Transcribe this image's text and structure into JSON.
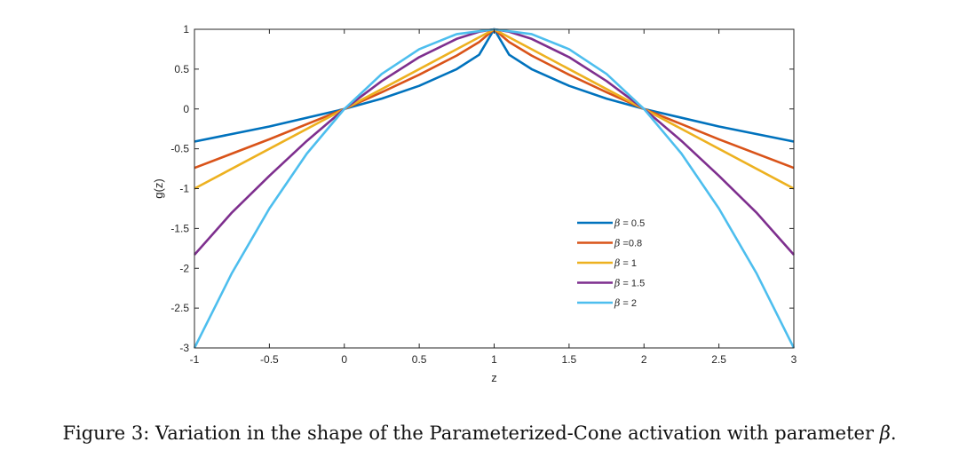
{
  "chart_data": {
    "type": "line",
    "xlabel": "z",
    "ylabel": "g(z)",
    "xlim": [
      -1,
      3
    ],
    "ylim": [
      -3,
      1
    ],
    "xticks": [
      -1,
      -0.5,
      0,
      0.5,
      1,
      1.5,
      2,
      2.5,
      3
    ],
    "xtick_labels": [
      "-1",
      "-0.5",
      "0",
      "0.5",
      "1",
      "1.5",
      "2",
      "2.5",
      "3"
    ],
    "yticks": [
      -3,
      -2.5,
      -2,
      -1.5,
      -1,
      -0.5,
      0,
      0.5,
      1
    ],
    "ytick_labels": [
      "-3",
      "-2.5",
      "-2",
      "-1.5",
      "-1",
      "-0.5",
      "0",
      "0.5",
      "1"
    ],
    "grid": false,
    "legend_position": "lower-right inside",
    "series": [
      {
        "name": "β = 0.5",
        "color": "#0072BD",
        "x": [
          -1,
          -0.5,
          0,
          0.25,
          0.5,
          0.75,
          0.9,
          1,
          1.1,
          1.25,
          1.5,
          1.75,
          2,
          2.5,
          3
        ],
        "y": [
          -0.41,
          -0.22,
          0,
          0.13,
          0.29,
          0.5,
          0.68,
          1,
          0.68,
          0.5,
          0.29,
          0.13,
          0,
          -0.22,
          -0.41
        ]
      },
      {
        "name": "β =0.8",
        "color": "#D95319",
        "x": [
          -1,
          -0.5,
          0,
          0.25,
          0.5,
          0.75,
          0.9,
          1,
          1.1,
          1.25,
          1.5,
          1.75,
          2,
          2.5,
          3
        ],
        "y": [
          -0.74,
          -0.38,
          0,
          0.21,
          0.43,
          0.67,
          0.84,
          1,
          0.84,
          0.67,
          0.43,
          0.21,
          0,
          -0.38,
          -0.74
        ]
      },
      {
        "name": "β = 1",
        "color": "#EDB120",
        "x": [
          -1,
          0,
          1,
          2,
          3
        ],
        "y": [
          -1,
          0,
          1,
          0,
          -1
        ]
      },
      {
        "name": "β = 1.5",
        "color": "#7E2F8E",
        "x": [
          -1,
          -0.75,
          -0.5,
          -0.25,
          0,
          0.25,
          0.5,
          0.75,
          0.9,
          1,
          1.1,
          1.25,
          1.5,
          1.75,
          2,
          2.25,
          2.5,
          2.75,
          3
        ],
        "y": [
          -1.83,
          -1.3,
          -0.84,
          -0.4,
          0,
          0.35,
          0.65,
          0.88,
          0.97,
          1,
          0.97,
          0.88,
          0.65,
          0.35,
          0,
          -0.4,
          -0.84,
          -1.3,
          -1.83
        ]
      },
      {
        "name": "β = 2",
        "color": "#4DBEEE",
        "x": [
          -1,
          -0.75,
          -0.5,
          -0.25,
          0,
          0.25,
          0.5,
          0.75,
          1,
          1.25,
          1.5,
          1.75,
          2,
          2.25,
          2.5,
          2.75,
          3
        ],
        "y": [
          -3,
          -2.06,
          -1.25,
          -0.56,
          0,
          0.44,
          0.75,
          0.94,
          1,
          0.94,
          0.75,
          0.44,
          0,
          -0.56,
          -1.25,
          -2.06,
          -3
        ]
      }
    ]
  },
  "caption": {
    "prefix": "Figure 3: Variation in the shape of the Parameterized-Cone activation with parameter ",
    "symbol": "β",
    "suffix": "."
  }
}
